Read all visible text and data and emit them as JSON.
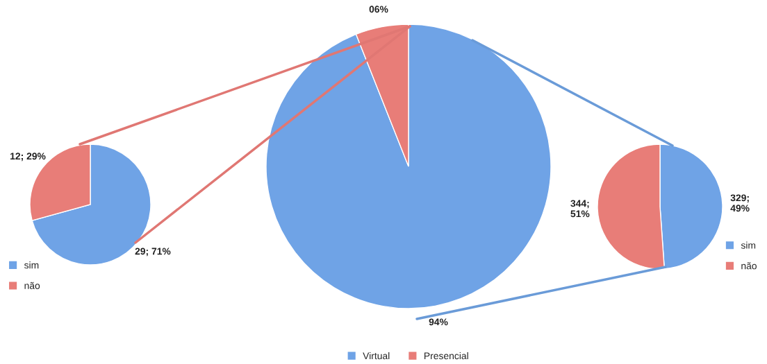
{
  "chart_data": [
    {
      "type": "pie",
      "categories": [
        "sim",
        "não"
      ],
      "values": [
        29,
        12
      ],
      "colors": [
        "#6fa3e6",
        "#e87d78"
      ],
      "value_labels": [
        "29; 71%",
        "12; 29%"
      ],
      "legend": "bottom left"
    },
    {
      "type": "pie",
      "categories": [
        "Virtual",
        "Presencial"
      ],
      "values": [
        94,
        6
      ],
      "colors": [
        "#6fa3e6",
        "#e87d78"
      ],
      "value_labels": [
        "94%",
        "06%"
      ],
      "legend": "bottom"
    },
    {
      "type": "pie",
      "categories": [
        "sim",
        "não"
      ],
      "values": [
        329,
        344
      ],
      "colors": [
        "#6fa3e6",
        "#e87d78"
      ],
      "value_labels": [
        "329;\n49%",
        "344;\n51%"
      ],
      "legend": "bottom right"
    }
  ]
}
